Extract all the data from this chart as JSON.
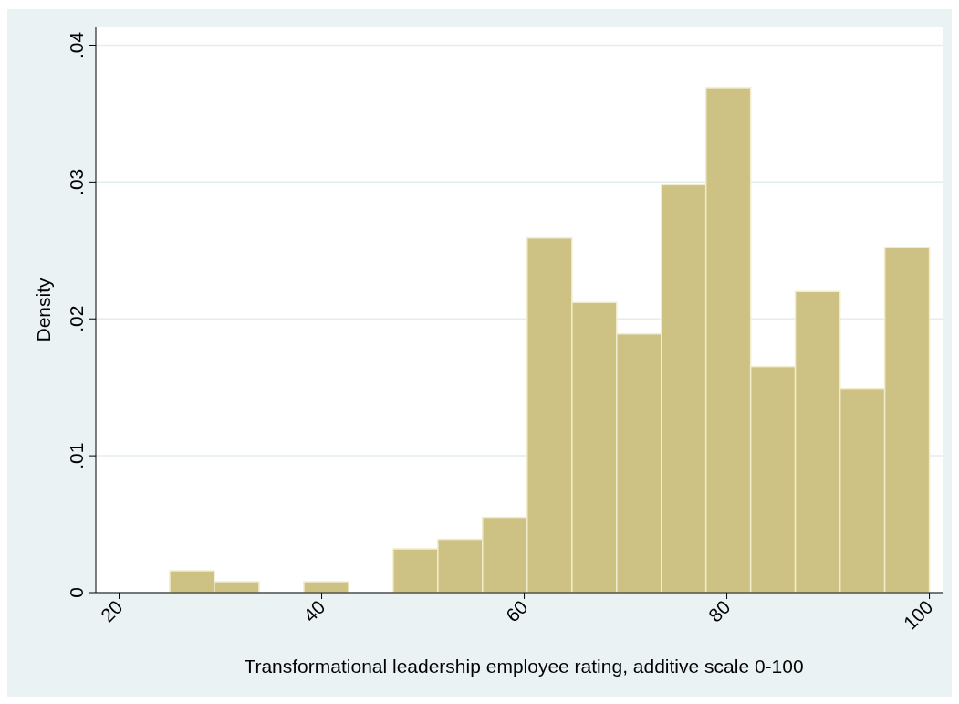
{
  "chart_data": {
    "type": "histogram",
    "xlabel": "Transformational leadership employee rating, additive scale 0-100",
    "ylabel": "Density",
    "color": "#cdc283",
    "bins": [
      25,
      29.41,
      33.82,
      38.24,
      42.65,
      47.06,
      51.47,
      55.88,
      60.29,
      64.71,
      69.12,
      73.53,
      77.94,
      82.35,
      86.76,
      91.18,
      95.59,
      100
    ],
    "values": [
      0.0016,
      0.0008,
      0,
      0.0008,
      0,
      0.0032,
      0.0039,
      0.0055,
      0.0259,
      0.0212,
      0.0189,
      0.0298,
      0.0369,
      0.0165,
      0.022,
      0.0149,
      0.0252
    ],
    "xlim": [
      17.7,
      101.3
    ],
    "xticks": [
      20,
      40,
      60,
      80,
      100
    ],
    "ylim": [
      0,
      0.0413
    ],
    "yticks": [
      0,
      {
        "value": 0.01,
        "label": ".01"
      },
      {
        "value": 0.02,
        "label": ".02"
      },
      {
        "value": 0.03,
        "label": ".03"
      },
      {
        "value": 0.04,
        "label": ".04"
      }
    ],
    "grid": "y"
  }
}
